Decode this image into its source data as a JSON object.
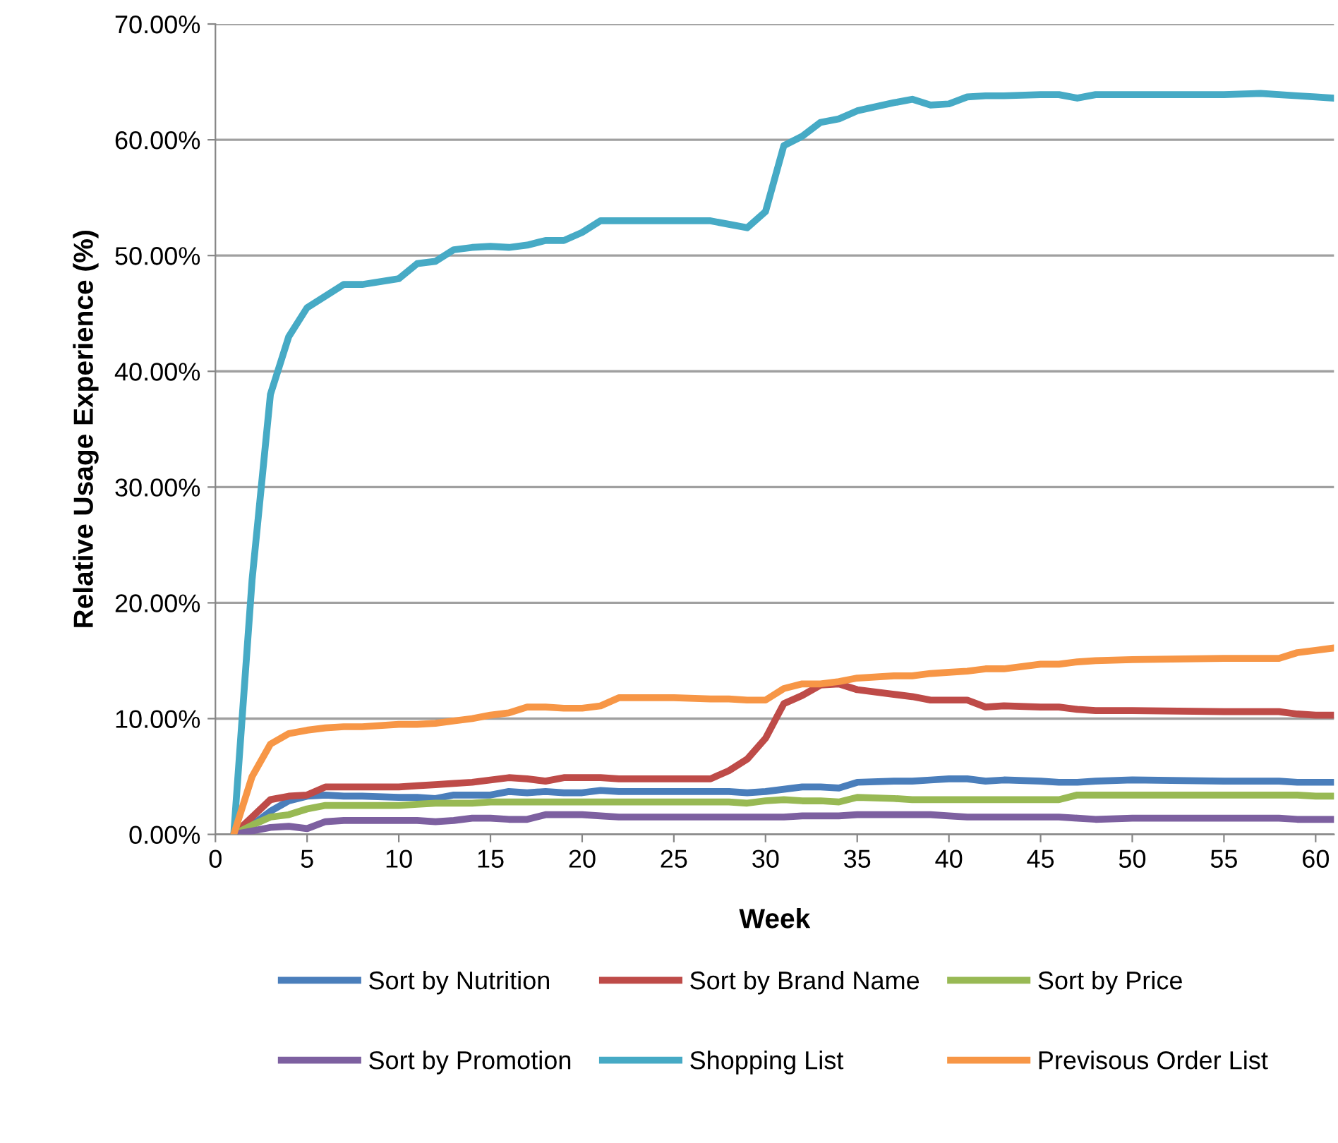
{
  "chart_data": {
    "type": "line",
    "xlabel": "Week",
    "ylabel": "Relative Usage Experience (%)",
    "x": [
      1,
      2,
      3,
      4,
      5,
      6,
      7,
      8,
      10,
      11,
      12,
      13,
      14,
      15,
      16,
      17,
      18,
      19,
      20,
      21,
      22,
      25,
      27,
      28,
      29,
      30,
      31,
      32,
      33,
      34,
      35,
      37,
      38,
      39,
      40,
      41,
      42,
      43,
      45,
      46,
      47,
      48,
      50,
      55,
      57,
      58,
      59,
      60,
      61
    ],
    "series": [
      {
        "name": "Sort by Nutrition",
        "color": "#4a7ebb",
        "values": [
          0,
          0.8,
          2.0,
          2.9,
          3.3,
          3.4,
          3.3,
          3.3,
          3.2,
          3.2,
          3.1,
          3.4,
          3.4,
          3.4,
          3.7,
          3.6,
          3.7,
          3.6,
          3.6,
          3.8,
          3.7,
          3.7,
          3.7,
          3.7,
          3.6,
          3.7,
          3.9,
          4.1,
          4.1,
          4.0,
          4.5,
          4.6,
          4.6,
          4.7,
          4.8,
          4.8,
          4.6,
          4.7,
          4.6,
          4.5,
          4.5,
          4.6,
          4.7,
          4.6,
          4.6,
          4.6,
          4.5,
          4.5,
          4.5
        ]
      },
      {
        "name": "Sort by Brand Name",
        "color": "#be4b48",
        "values": [
          0,
          1.5,
          3.0,
          3.3,
          3.4,
          4.1,
          4.1,
          4.1,
          4.1,
          4.2,
          4.3,
          4.4,
          4.5,
          4.7,
          4.9,
          4.8,
          4.6,
          4.9,
          4.9,
          4.9,
          4.8,
          4.8,
          4.8,
          5.5,
          6.5,
          8.3,
          11.3,
          12.0,
          12.9,
          13.0,
          12.5,
          12.1,
          11.9,
          11.6,
          11.6,
          11.6,
          11.0,
          11.1,
          11.0,
          11.0,
          10.8,
          10.7,
          10.7,
          10.6,
          10.6,
          10.6,
          10.4,
          10.3,
          10.3
        ]
      },
      {
        "name": "Sort by Price",
        "color": "#98b954",
        "values": [
          0,
          0.8,
          1.5,
          1.7,
          2.2,
          2.5,
          2.5,
          2.5,
          2.5,
          2.6,
          2.7,
          2.7,
          2.7,
          2.8,
          2.8,
          2.8,
          2.8,
          2.8,
          2.8,
          2.8,
          2.8,
          2.8,
          2.8,
          2.8,
          2.7,
          2.9,
          3.0,
          2.9,
          2.9,
          2.8,
          3.2,
          3.1,
          3.0,
          3.0,
          3.0,
          3.0,
          3.0,
          3.0,
          3.0,
          3.0,
          3.4,
          3.4,
          3.4,
          3.4,
          3.4,
          3.4,
          3.4,
          3.3,
          3.3
        ]
      },
      {
        "name": "Sort by Promotion",
        "color": "#7d60a0",
        "values": [
          0,
          0.3,
          0.6,
          0.7,
          0.5,
          1.1,
          1.2,
          1.2,
          1.2,
          1.2,
          1.1,
          1.2,
          1.4,
          1.4,
          1.3,
          1.3,
          1.7,
          1.7,
          1.7,
          1.6,
          1.5,
          1.5,
          1.5,
          1.5,
          1.5,
          1.5,
          1.5,
          1.6,
          1.6,
          1.6,
          1.7,
          1.7,
          1.7,
          1.7,
          1.6,
          1.5,
          1.5,
          1.5,
          1.5,
          1.5,
          1.4,
          1.3,
          1.4,
          1.4,
          1.4,
          1.4,
          1.3,
          1.3,
          1.3
        ]
      },
      {
        "name": "Shopping List",
        "color": "#46aac5",
        "values": [
          0,
          22,
          38,
          43,
          45.5,
          46.5,
          47.5,
          47.5,
          48,
          49.3,
          49.5,
          50.5,
          50.7,
          50.8,
          50.7,
          50.9,
          51.3,
          51.3,
          52,
          53,
          53,
          53,
          53,
          52.7,
          52.4,
          53.8,
          59.5,
          60.3,
          61.5,
          61.8,
          62.5,
          63.2,
          63.5,
          63,
          63.1,
          63.7,
          63.8,
          63.8,
          63.9,
          63.9,
          63.6,
          63.9,
          63.9,
          63.9,
          64,
          63.9,
          63.8,
          63.7,
          63.6
        ]
      },
      {
        "name": "Previsous Order List",
        "color": "#f79646",
        "values": [
          0,
          5,
          7.8,
          8.7,
          9.0,
          9.2,
          9.3,
          9.3,
          9.5,
          9.5,
          9.6,
          9.8,
          10.0,
          10.3,
          10.5,
          11.0,
          11.0,
          10.9,
          10.9,
          11.1,
          11.8,
          11.8,
          11.7,
          11.7,
          11.6,
          11.6,
          12.6,
          13.0,
          13.0,
          13.2,
          13.5,
          13.7,
          13.7,
          13.9,
          14.0,
          14.1,
          14.3,
          14.3,
          14.7,
          14.7,
          14.9,
          15.0,
          15.1,
          15.2,
          15.2,
          15.2,
          15.7,
          15.9,
          16.1
        ]
      }
    ],
    "xlim": [
      0,
      61
    ],
    "xticks": [
      0,
      5,
      10,
      15,
      20,
      25,
      30,
      35,
      40,
      45,
      50,
      55,
      60
    ],
    "ylim": [
      0,
      70
    ],
    "yticks": [
      {
        "value": 0,
        "label": "0.00%"
      },
      {
        "value": 10,
        "label": "10.00%"
      },
      {
        "value": 20,
        "label": "20.00%"
      },
      {
        "value": 30,
        "label": "30.00%"
      },
      {
        "value": 40,
        "label": "40.00%"
      },
      {
        "value": 50,
        "label": "50.00%"
      },
      {
        "value": 60,
        "label": "60.00%"
      },
      {
        "value": 70,
        "label": "70.00%"
      }
    ],
    "grid": "y",
    "legend": "bottom",
    "marker": "none",
    "line_style": "solid"
  }
}
